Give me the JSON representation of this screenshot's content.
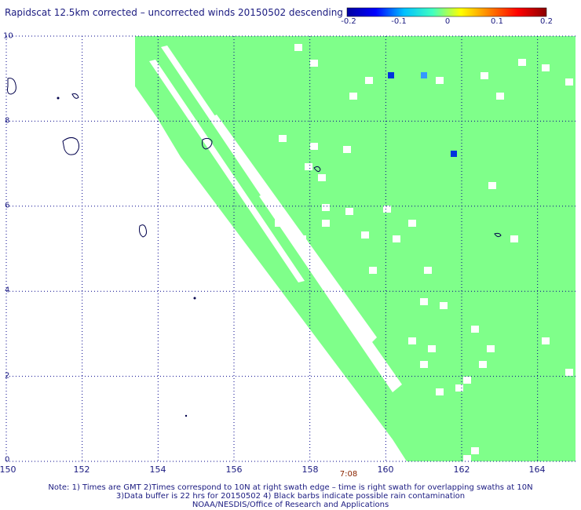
{
  "title": "Rapidscat 12.5km corrected – uncorrected winds 20150502 descending",
  "colorbar": {
    "labels": [
      "-0.2",
      "-0.1",
      "0",
      "0.1",
      "0.2"
    ],
    "stops": [
      "#0000a0",
      "#0000ff",
      "#00c0ff",
      "#40ffc0",
      "#ffff00",
      "#ff8000",
      "#ff0000",
      "#8b0000"
    ]
  },
  "axes": {
    "x_labels": [
      "150",
      "152",
      "154",
      "156",
      "158",
      "160",
      "162",
      "164"
    ],
    "y_labels": [
      "10",
      "8",
      "6",
      "4",
      "2",
      "0"
    ],
    "lon_range": [
      150,
      165
    ],
    "lat_range": [
      0,
      10
    ]
  },
  "time_label": "7:08",
  "notes": [
    "Note: 1) Times are GMT 2)Times correspond to 10N at right swath edge – time is right swath for overlapping swaths at 10N",
    "3)Data buffer is 22 hrs for 20150502 4) Black barbs indicate possible rain contamination",
    "NOAA/NESDIS/Office of Research and Applications"
  ],
  "colors": {
    "swath": "#7fff8a",
    "grid": "#00008b",
    "coast": "#00004b",
    "background": "#ffffff",
    "neg_strong": "#0033dd",
    "neg_light": "#3399ff"
  }
}
